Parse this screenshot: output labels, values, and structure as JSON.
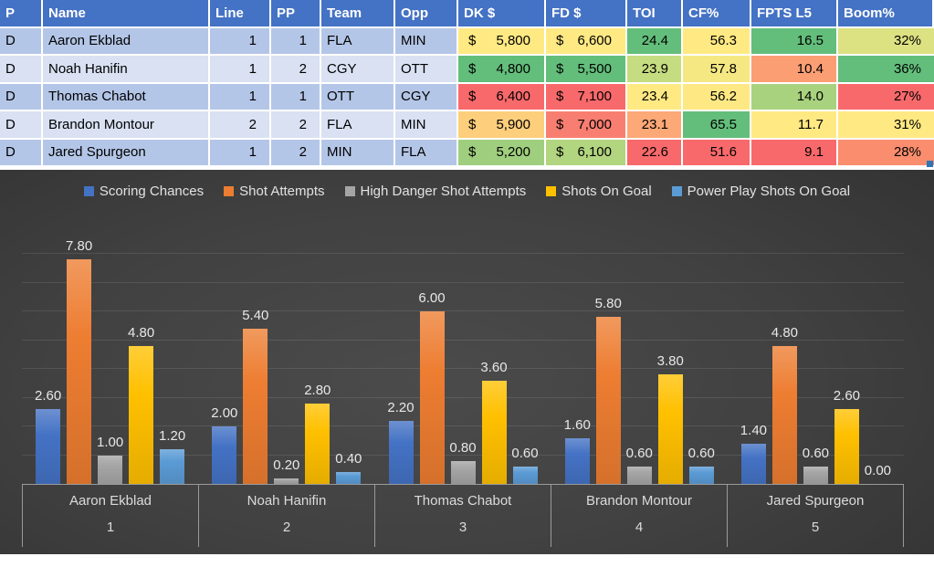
{
  "table": {
    "header_bg": "#4472C4",
    "band_colors": [
      "#B4C6E7",
      "#D9E1F2"
    ],
    "money_prefix": "$",
    "columns": [
      {
        "label": "P",
        "width": 47,
        "type": "text"
      },
      {
        "label": "Name",
        "width": 183,
        "type": "text"
      },
      {
        "label": "Line",
        "width": 67,
        "type": "num"
      },
      {
        "label": "PP",
        "width": 55,
        "type": "num"
      },
      {
        "label": "Team",
        "width": 81,
        "type": "text"
      },
      {
        "label": "Opp",
        "width": 69,
        "type": "text"
      },
      {
        "label": "DK $",
        "width": 96,
        "type": "money"
      },
      {
        "label": "FD $",
        "width": 89,
        "type": "money"
      },
      {
        "label": "TOI",
        "width": 61,
        "type": "num"
      },
      {
        "label": "CF%",
        "width": 75,
        "type": "num"
      },
      {
        "label": "FPTS L5",
        "width": 95,
        "type": "num"
      },
      {
        "label": "Boom%",
        "width": 105,
        "type": "num"
      }
    ],
    "rows": [
      {
        "cells": [
          "D",
          "Aaron Ekblad",
          "1",
          "1",
          "FLA",
          "MIN",
          "5,800",
          "6,600",
          "24.4",
          "56.3",
          "16.5",
          "32%"
        ],
        "bgs": [
          null,
          null,
          null,
          null,
          null,
          null,
          "#FFE983",
          "#FFE983",
          "#63BE7B",
          "#FFE983",
          "#63BE7B",
          "#DCE182"
        ]
      },
      {
        "cells": [
          "D",
          "Noah Hanifin",
          "1",
          "2",
          "CGY",
          "OTT",
          "4,800",
          "5,500",
          "23.9",
          "57.8",
          "10.4",
          "36%"
        ],
        "bgs": [
          null,
          null,
          null,
          null,
          null,
          null,
          "#63BE7B",
          "#63BE7B",
          "#C6DC80",
          "#F5E883",
          "#FB9E74",
          "#63BE7B"
        ]
      },
      {
        "cells": [
          "D",
          "Thomas Chabot",
          "1",
          "1",
          "OTT",
          "CGY",
          "6,400",
          "7,100",
          "23.4",
          "56.2",
          "14.0",
          "27%"
        ],
        "bgs": [
          null,
          null,
          null,
          null,
          null,
          null,
          "#F8696B",
          "#F8696B",
          "#FFE983",
          "#FEE883",
          "#A8D27E",
          "#F8696B"
        ]
      },
      {
        "cells": [
          "D",
          "Brandon Montour",
          "2",
          "2",
          "FLA",
          "MIN",
          "5,900",
          "7,000",
          "23.1",
          "65.5",
          "11.7",
          "31%"
        ],
        "bgs": [
          null,
          null,
          null,
          null,
          null,
          null,
          "#FDCE7C",
          "#F87E71",
          "#FCA877",
          "#63BE7B",
          "#FFE983",
          "#FFE983"
        ]
      },
      {
        "cells": [
          "D",
          "Jared Spurgeon",
          "1",
          "2",
          "MIN",
          "FLA",
          "5,200",
          "6,100",
          "22.6",
          "51.6",
          "9.1",
          "28%"
        ],
        "bgs": [
          null,
          null,
          null,
          null,
          null,
          null,
          "#9FCF7E",
          "#B2D57F",
          "#F8696B",
          "#F8696B",
          "#F8696B",
          "#F98D6E"
        ]
      }
    ]
  },
  "chart_data": {
    "type": "bar",
    "title": "",
    "categories": [
      "Aaron Ekblad",
      "Noah Hanifin",
      "Thomas Chabot",
      "Brandon Montour",
      "Jared Spurgeon"
    ],
    "category_numbers": [
      "1",
      "2",
      "3",
      "4",
      "5"
    ],
    "series": [
      {
        "name": "Scoring Chances",
        "color": "#4472C4",
        "values": [
          2.6,
          2.0,
          2.2,
          1.6,
          1.4
        ]
      },
      {
        "name": "Shot Attempts",
        "color": "#ED7D31",
        "values": [
          7.8,
          5.4,
          6.0,
          5.8,
          4.8
        ]
      },
      {
        "name": "High Danger Shot Attempts",
        "color": "#A5A5A5",
        "values": [
          1.0,
          0.2,
          0.8,
          0.6,
          0.6
        ]
      },
      {
        "name": "Shots On Goal",
        "color": "#FFC000",
        "values": [
          4.8,
          2.8,
          3.6,
          3.8,
          2.6
        ]
      },
      {
        "name": "Power Play Shots On Goal",
        "color": "#5B9BD5",
        "values": [
          1.2,
          0.4,
          0.6,
          0.6,
          0.0
        ]
      }
    ],
    "xlabel": "",
    "ylabel": "",
    "ylim": [
      0,
      8
    ],
    "grid_step": 1,
    "grid": true,
    "legend_position": "top",
    "background": "#404040",
    "label_format": "0.00"
  }
}
